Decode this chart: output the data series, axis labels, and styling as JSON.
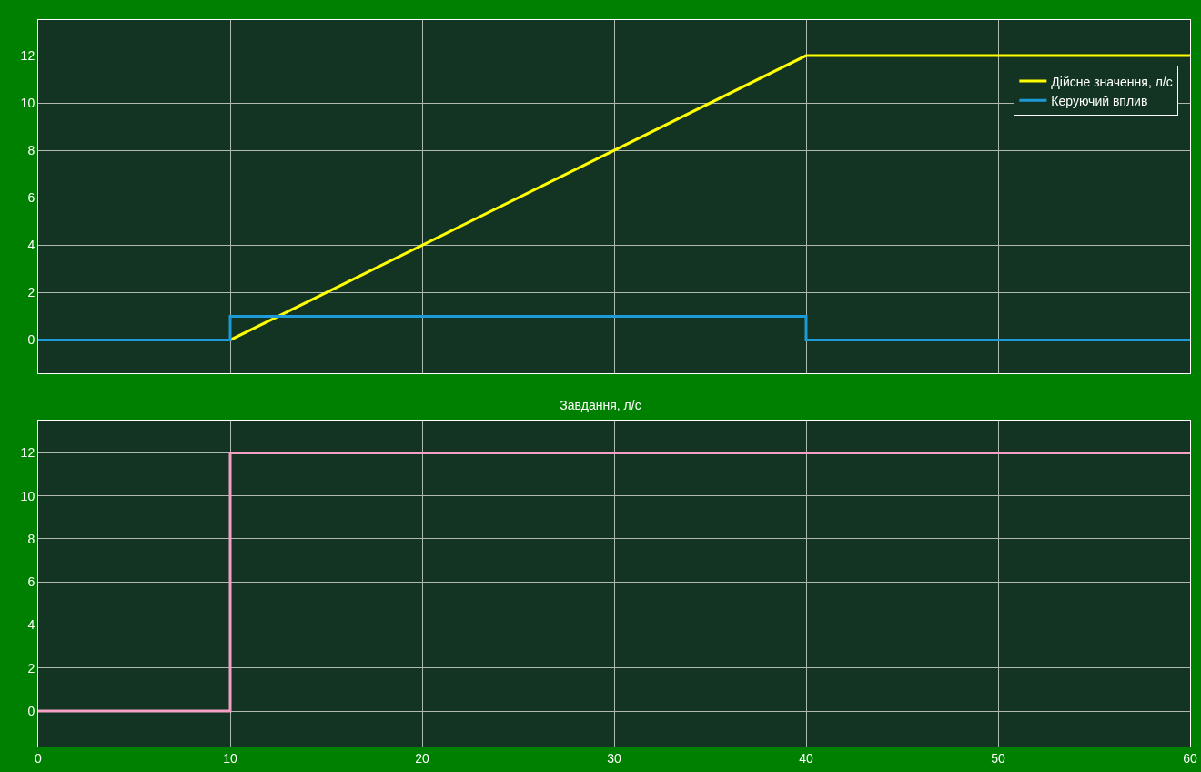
{
  "chart_data": [
    {
      "type": "line",
      "x": [
        0,
        10,
        40,
        60
      ],
      "series": [
        {
          "name": "Дійсне значення, л/с",
          "color": "#ffff00",
          "values": [
            0,
            0,
            12,
            12
          ]
        },
        {
          "name": "Керуючий вплив",
          "color": "#1f9ad8",
          "type": "step",
          "x": [
            0,
            10,
            40,
            60
          ],
          "values": [
            0,
            1,
            0,
            0
          ]
        }
      ],
      "xlim": [
        0,
        60
      ],
      "xticks": [
        0,
        10,
        20,
        30,
        40,
        50,
        60
      ],
      "ylim": [
        -1.4,
        13.5
      ],
      "yticks": [
        0,
        2,
        4,
        6,
        8,
        10,
        12
      ],
      "grid": true,
      "legend": "top right",
      "tick_labels": "y"
    },
    {
      "type": "step",
      "title": "Завдання, л/с",
      "x": [
        0,
        10,
        60
      ],
      "series": [
        {
          "color": "#f59fc5",
          "values": [
            0,
            12,
            12
          ]
        }
      ],
      "xlim": [
        0,
        60
      ],
      "xticks": [
        0,
        10,
        20,
        30,
        40,
        50,
        60
      ],
      "ylim": [
        -1.65,
        13.5
      ],
      "yticks": [
        0,
        2,
        4,
        6,
        8,
        10,
        12
      ],
      "grid": true
    }
  ]
}
